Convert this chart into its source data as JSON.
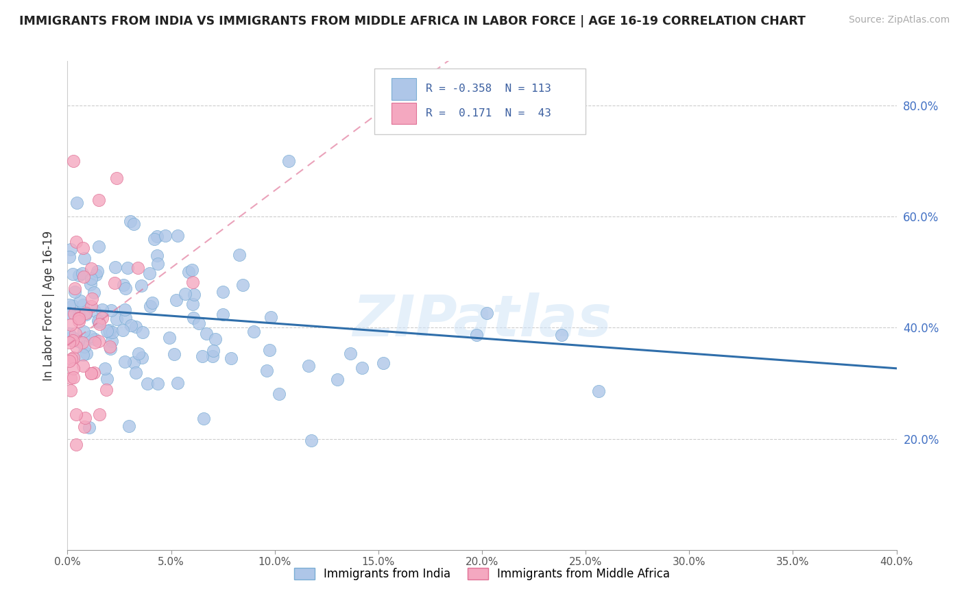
{
  "title": "IMMIGRANTS FROM INDIA VS IMMIGRANTS FROM MIDDLE AFRICA IN LABOR FORCE | AGE 16-19 CORRELATION CHART",
  "source": "Source: ZipAtlas.com",
  "ylabel": "In Labor Force | Age 16-19",
  "xlim": [
    0.0,
    0.4
  ],
  "ylim": [
    0.0,
    0.88
  ],
  "xticks": [
    0.0,
    0.05,
    0.1,
    0.15,
    0.2,
    0.25,
    0.3,
    0.35,
    0.4
  ],
  "yticks": [
    0.2,
    0.4,
    0.6,
    0.8
  ],
  "india_color": "#aec6e8",
  "india_edge_color": "#7aadd4",
  "india_line_color": "#2f6eaa",
  "africa_color": "#f4a8c0",
  "africa_edge_color": "#e07095",
  "africa_line_color": "#e07095",
  "india_R": -0.358,
  "india_N": 113,
  "africa_R": 0.171,
  "africa_N": 43,
  "watermark": "ZIPatlas",
  "background_color": "#ffffff",
  "grid_color": "#cccccc"
}
